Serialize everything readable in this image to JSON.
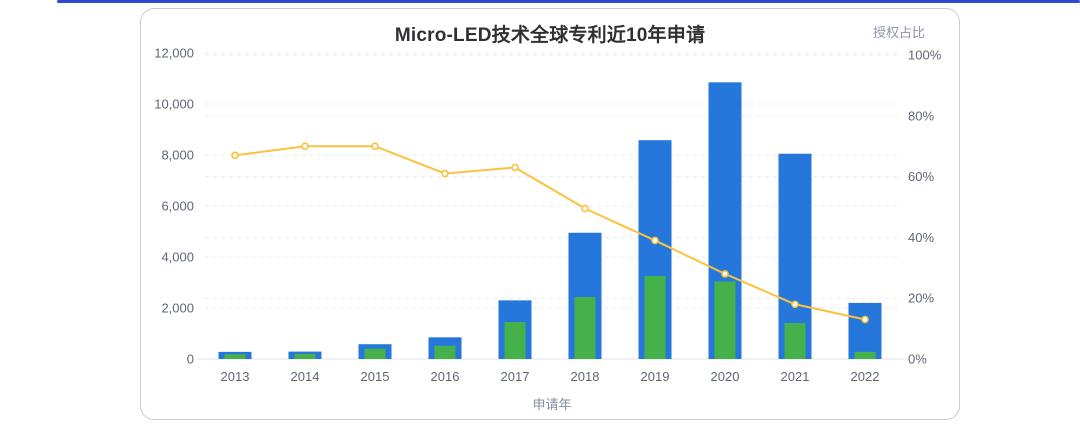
{
  "page": {
    "accent_color": "#2C4AD0"
  },
  "chart_data": {
    "type": "bar",
    "subtype": "grouped-overlay bars with secondary-axis line",
    "title": "Micro-LED技术全球专利近10年申请",
    "xlabel": "申请年",
    "right_axis_title": "授权占比",
    "categories": [
      "2013",
      "2014",
      "2015",
      "2016",
      "2017",
      "2018",
      "2019",
      "2020",
      "2021",
      "2022"
    ],
    "series": [
      {
        "id": "patent-applications",
        "type": "bar",
        "axis": "left",
        "color": "#2577DB",
        "values": [
          280,
          290,
          580,
          850,
          2300,
          4950,
          8580,
          10850,
          8050,
          2200
        ]
      },
      {
        "id": "patents-granted",
        "type": "bar",
        "axis": "left",
        "color": "#46B14A",
        "values": [
          190,
          200,
          400,
          520,
          1450,
          2430,
          3260,
          3040,
          1410,
          280
        ]
      },
      {
        "id": "grant-ratio",
        "type": "line",
        "axis": "right",
        "color": "#FAC23D",
        "values": [
          67,
          70,
          70,
          61,
          63,
          49.5,
          39,
          28,
          18,
          13
        ]
      }
    ],
    "y_left": {
      "min": 0,
      "max": 12000,
      "tick_values": [
        0,
        2000,
        4000,
        6000,
        8000,
        10000,
        12000
      ],
      "tick_labels": [
        "0",
        "2,000",
        "4,000",
        "6,000",
        "8,000",
        "10,000",
        "12,000"
      ]
    },
    "y_right": {
      "min": 0,
      "max": 100,
      "tick_values": [
        0,
        20,
        40,
        60,
        80,
        100
      ],
      "tick_labels": [
        "0%",
        "20%",
        "40%",
        "60%",
        "80%",
        "100%"
      ]
    },
    "grid": {
      "style": "dashed",
      "color": "#E7E9EE"
    },
    "legend": "none"
  }
}
